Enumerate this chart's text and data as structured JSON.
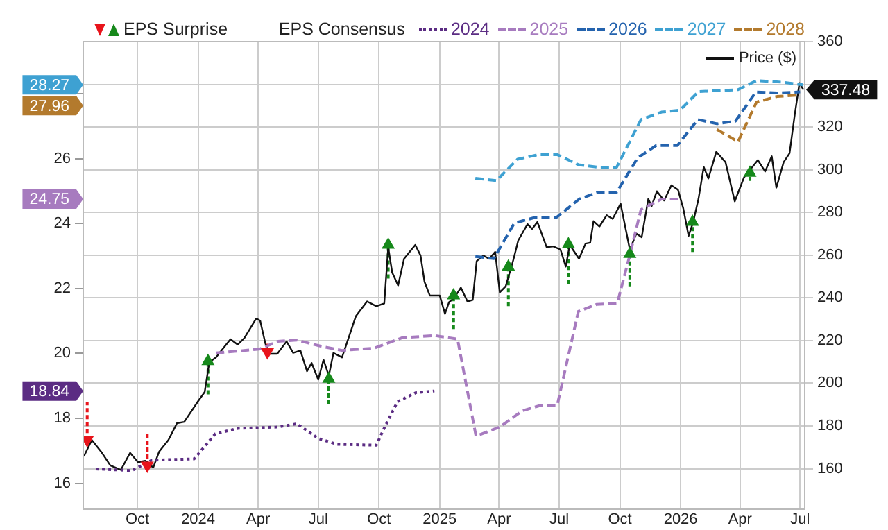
{
  "chart_data": {
    "type": "line",
    "legend": "top",
    "legend_title": "EPS Consensus",
    "grid": true,
    "annotations": [
      "18.84",
      "24.75",
      "28.27",
      "27.96"
    ],
    "xlim": [
      "2023-07-11",
      "2026-07-08"
    ],
    "xticks": [
      {
        "value": "2023-10-01",
        "label": "Oct"
      },
      {
        "value": "2024-01-01",
        "label": "2024"
      },
      {
        "value": "2024-04-01",
        "label": "Apr"
      },
      {
        "value": "2024-07-01",
        "label": "Jul"
      },
      {
        "value": "2024-10-01",
        "label": "Oct"
      },
      {
        "value": "2025-01-01",
        "label": "2025"
      },
      {
        "value": "2025-04-01",
        "label": "Apr"
      },
      {
        "value": "2025-07-01",
        "label": "Jul"
      },
      {
        "value": "2025-10-01",
        "label": "Oct"
      },
      {
        "value": "2026-01-01",
        "label": "2026"
      },
      {
        "value": "2026-04-01",
        "label": "Apr"
      },
      {
        "value": "2026-07-01",
        "label": "Jul"
      }
    ],
    "ylim": [
      15.2,
      29.6
    ],
    "yticks": [
      16,
      18,
      20,
      22,
      24,
      26,
      {
        "value": 28,
        "label": null
      }
    ],
    "y2lim": [
      141,
      360
    ],
    "y2ticks": [
      160,
      180,
      200,
      220,
      240,
      260,
      280,
      300,
      320,
      {
        "value": 340,
        "label": null
      },
      360
    ],
    "series": [
      {
        "name": "EPS Surprise",
        "type": "scatter",
        "axis": "y2",
        "marker": "triangle",
        "x": [
          "2023-07-17",
          "2023-10-16",
          "2024-01-16",
          "2024-04-15",
          "2024-07-17",
          "2024-10-15",
          "2025-01-22",
          "2025-04-15",
          "2025-07-15",
          "2025-10-16",
          "2026-01-19",
          "2026-04-16"
        ],
        "values": [
          173.4,
          161.5,
          210.3,
          214.6,
          202,
          264.8,
          241.1,
          254.6,
          265,
          260.5,
          275.5,
          298.5
        ],
        "errors": [
          [
            173.4,
            191.4
          ],
          [
            161.5,
            176.6
          ],
          [
            194.8,
            210.3
          ],
          [
            214.6,
            218.5
          ],
          [
            190.1,
            202
          ],
          [
            249,
            264.8
          ],
          [
            225.4,
            241.1
          ],
          [
            236.1,
            254.6
          ],
          [
            246.5,
            265
          ],
          [
            245.4,
            260.5
          ],
          [
            261.5,
            275.5
          ],
          [
            294.8,
            298.5
          ]
        ],
        "colors": [
          "#e8141b",
          "#e8141b",
          "#16891b",
          "#e8141b",
          "#16891b",
          "#16891b",
          "#16891b",
          "#16891b",
          "#16891b",
          "#16891b",
          "#16891b",
          "#16891b"
        ]
      },
      {
        "name": "2024",
        "color": "#5b2c83",
        "line_style": "dotted",
        "x": [
          "2023-07-30",
          "2023-09-23",
          "2023-10-23",
          "2023-12-26",
          "2024-01-27",
          "2024-03-01",
          "2024-04-29",
          "2024-05-30",
          "2024-07-01",
          "2024-07-29",
          "2024-09-27",
          "2024-10-08",
          "2024-10-29",
          "2024-11-26",
          "2024-12-24"
        ],
        "values": [
          16.44,
          16.39,
          16.71,
          16.75,
          17.52,
          17.69,
          17.73,
          17.83,
          17.38,
          17.2,
          17.17,
          17.66,
          18.51,
          18.79,
          18.84
        ]
      },
      {
        "name": "2025",
        "color": "#a77bbf",
        "line_style": "dashed",
        "x": [
          "2024-01-28",
          "2024-04-03",
          "2024-05-01",
          "2024-05-29",
          "2024-07-09",
          "2024-08-06",
          "2024-09-24",
          "2024-11-05",
          "2024-12-24",
          "2025-01-28",
          "2025-02-25",
          "2025-04-02",
          "2025-05-06",
          "2025-06-03",
          "2025-06-28",
          "2025-07-30",
          "2025-08-27",
          "2025-09-27",
          "2025-10-15",
          "2025-11-02",
          "2025-12-03",
          "2025-12-29"
        ],
        "values": [
          20.01,
          20.13,
          20.37,
          20.41,
          20.2,
          20.09,
          20.16,
          20.48,
          20.55,
          20.44,
          17.45,
          17.73,
          18.23,
          18.4,
          18.4,
          21.29,
          21.51,
          21.54,
          22.95,
          24.43,
          24.75,
          24.75
        ]
      },
      {
        "name": "2026",
        "color": "#2463ae",
        "line_style": "dashed",
        "x": [
          "2025-02-24",
          "2025-03-24",
          "2025-04-24",
          "2025-05-26",
          "2025-06-27",
          "2025-08-01",
          "2025-08-29",
          "2025-09-26",
          "2025-10-28",
          "2025-11-25",
          "2025-12-27",
          "2026-01-27",
          "2026-02-25",
          "2026-03-25",
          "2026-04-25",
          "2026-05-27",
          "2026-07-01"
        ],
        "values": [
          22.98,
          22.92,
          24.01,
          24.19,
          24.19,
          24.76,
          24.96,
          24.96,
          26.02,
          26.4,
          26.4,
          27.2,
          27.07,
          27.15,
          28.05,
          28.02,
          28.05
        ]
      },
      {
        "name": "2027",
        "color": "#3ea1d2",
        "line_style": "dashed",
        "x": [
          "2025-02-24",
          "2025-03-28",
          "2025-04-29",
          "2025-05-31",
          "2025-06-28",
          "2025-07-30",
          "2025-08-30",
          "2025-09-26",
          "2025-11-02",
          "2025-12-03",
          "2025-12-31",
          "2026-01-28",
          "2026-03-29",
          "2026-04-26",
          "2026-06-04",
          "2026-07-05"
        ],
        "values": [
          25.39,
          25.32,
          25.98,
          26.12,
          26.12,
          25.81,
          25.73,
          25.73,
          27.2,
          27.43,
          27.49,
          28.06,
          28.12,
          28.4,
          28.35,
          28.27
        ]
      },
      {
        "name": "2028",
        "color": "#b37a2d",
        "line_style": "dashed",
        "x": [
          "2026-02-25",
          "2026-03-29",
          "2026-04-26",
          "2026-05-27",
          "2026-07-01"
        ],
        "values": [
          26.89,
          26.52,
          27.74,
          27.91,
          27.96
        ]
      },
      {
        "name": "Price ($)",
        "color": "#111111",
        "line_style": "solid",
        "axis": "y2",
        "x": [
          "2023-07-12",
          "2023-07-24",
          "2023-08-07",
          "2023-08-21",
          "2023-09-06",
          "2023-09-20",
          "2023-10-02",
          "2023-10-13",
          "2023-10-25",
          "2023-11-03",
          "2023-11-17",
          "2023-11-30",
          "2023-12-11",
          "2024-01-01",
          "2024-01-11",
          "2024-01-18",
          "2024-01-28",
          "2024-02-19",
          "2024-03-01",
          "2024-03-11",
          "2024-03-29",
          "2024-04-04",
          "2024-04-12",
          "2024-04-19",
          "2024-04-30",
          "2024-05-14",
          "2024-05-24",
          "2024-06-04",
          "2024-06-14",
          "2024-06-21",
          "2024-07-01",
          "2024-07-09",
          "2024-07-17",
          "2024-07-24",
          "2024-08-06",
          "2024-08-27",
          "2024-09-13",
          "2024-09-27",
          "2024-10-09",
          "2024-10-15",
          "2024-10-21",
          "2024-10-30",
          "2024-11-08",
          "2024-11-25",
          "2024-12-03",
          "2024-12-09",
          "2024-12-17",
          "2025-01-01",
          "2025-01-09",
          "2025-01-15",
          "2025-01-23",
          "2025-02-02",
          "2025-02-12",
          "2025-02-20",
          "2025-02-26",
          "2025-03-08",
          "2025-03-17",
          "2025-03-26",
          "2025-04-02",
          "2025-04-11",
          "2025-04-23",
          "2025-04-30",
          "2025-05-14",
          "2025-05-21",
          "2025-05-29",
          "2025-06-12",
          "2025-06-22",
          "2025-07-03",
          "2025-07-11",
          "2025-07-17",
          "2025-07-31",
          "2025-08-10",
          "2025-08-17",
          "2025-08-22",
          "2025-08-31",
          "2025-09-11",
          "2025-09-20",
          "2025-10-02",
          "2025-10-16",
          "2025-10-26",
          "2025-11-03",
          "2025-11-13",
          "2025-11-18",
          "2025-11-26",
          "2025-12-07",
          "2025-12-18",
          "2025-12-28",
          "2026-01-05",
          "2026-01-13",
          "2026-01-20",
          "2026-01-28",
          "2026-02-05",
          "2026-02-12",
          "2026-02-24",
          "2026-03-10",
          "2026-03-24",
          "2026-04-07",
          "2026-04-28",
          "2026-05-09",
          "2026-05-19",
          "2026-05-26",
          "2026-06-06",
          "2026-06-15",
          "2026-06-23",
          "2026-06-30",
          "2026-07-06"
        ],
        "values": [
          165.8,
          173.4,
          168,
          161.5,
          159.4,
          167.4,
          163,
          163.7,
          160.5,
          168,
          173.4,
          181.3,
          181.9,
          191.6,
          195.9,
          209.9,
          212.1,
          220.6,
          218.1,
          221.1,
          230.3,
          229.3,
          218.5,
          213.8,
          213.8,
          219.6,
          214.2,
          215.3,
          205.6,
          209.5,
          201.7,
          211,
          203.5,
          214.2,
          212.1,
          231.4,
          238.3,
          236.1,
          237.4,
          263.7,
          251.9,
          245.8,
          258.3,
          264.8,
          259.8,
          247.5,
          241.1,
          241.1,
          232.5,
          237.9,
          240,
          244.8,
          238.3,
          239,
          257.2,
          259.8,
          258.3,
          261.5,
          242.6,
          245.4,
          258.3,
          266.9,
          274.5,
          272.3,
          275.5,
          263.7,
          264.1,
          262.6,
          254.6,
          264.8,
          258.3,
          265.4,
          265.8,
          275.9,
          273.4,
          278.7,
          277,
          284.1,
          262.6,
          270.1,
          268.4,
          286.3,
          283,
          289.9,
          285.6,
          292.7,
          290.6,
          281.9,
          269,
          275.5,
          286.3,
          301.3,
          295.9,
          308.4,
          303.5,
          285.2,
          296.4,
          304.5,
          299.2,
          306.3,
          291.6,
          303.5,
          307.7,
          326.1,
          340.6,
          337.48
        ],
        "value_labels": [
          null,
          null,
          null,
          null,
          null,
          null,
          null,
          null,
          null,
          null,
          null,
          null,
          null,
          null,
          null,
          null,
          null,
          null,
          null,
          null,
          null,
          null,
          null,
          null,
          null,
          null,
          null,
          null,
          null,
          null,
          null,
          null,
          null,
          null,
          null,
          null,
          null,
          null,
          null,
          null,
          null,
          null,
          null,
          null,
          null,
          null,
          null,
          null,
          null,
          null,
          null,
          null,
          null,
          null,
          null,
          null,
          null,
          null,
          null,
          null,
          null,
          null,
          null,
          null,
          null,
          null,
          null,
          null,
          null,
          null,
          null,
          null,
          null,
          null,
          null,
          null,
          null,
          null,
          null,
          null,
          null,
          null,
          null,
          null,
          null,
          null,
          null,
          null,
          null,
          null,
          null,
          null,
          null,
          null,
          null,
          null,
          null,
          null,
          null,
          null,
          null,
          null,
          null,
          null,
          null,
          "337.48"
        ]
      }
    ]
  }
}
